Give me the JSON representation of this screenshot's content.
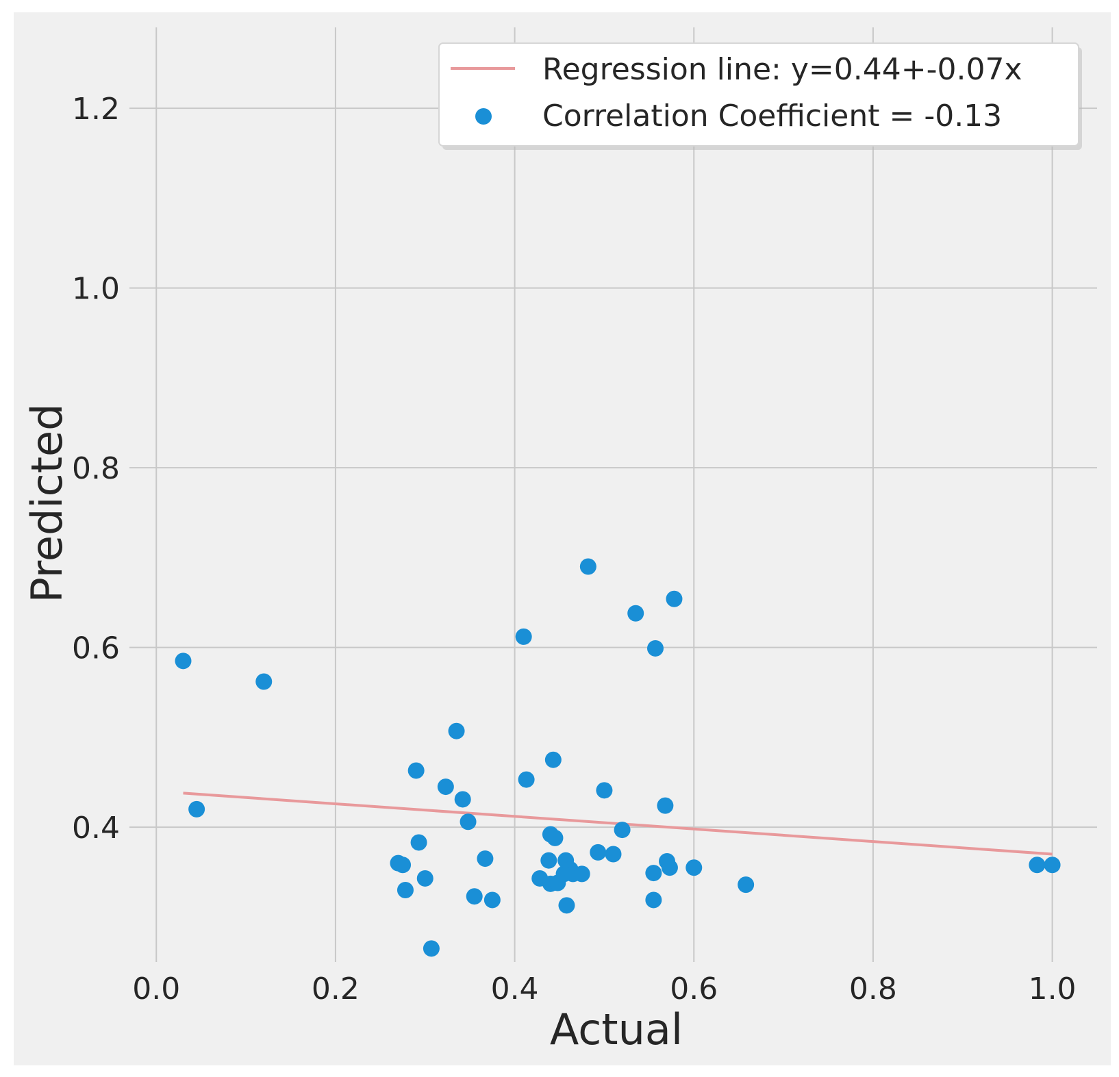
{
  "chart_data": {
    "type": "scatter",
    "title": "",
    "xlabel": "Actual",
    "ylabel": "Predicted",
    "xlim": [
      -0.03,
      1.05
    ],
    "ylim": [
      0.25,
      1.29
    ],
    "xticks": [
      0.0,
      0.2,
      0.4,
      0.6,
      0.8,
      1.0
    ],
    "xtick_labels": [
      "0.0",
      "0.2",
      "0.4",
      "0.6",
      "0.8",
      "1.0"
    ],
    "yticks": [
      0.4,
      0.6,
      0.8,
      1.0,
      1.2
    ],
    "ytick_labels": [
      "0.4",
      "0.6",
      "0.8",
      "1.0",
      "1.2"
    ],
    "grid": true,
    "legend_position": "top-right",
    "regression": {
      "label": "Regression line: y=0.44+-0.07x",
      "intercept": 0.44,
      "slope": -0.07,
      "x_range": [
        0.03,
        1.0
      ],
      "color": "#e8999b"
    },
    "series": [
      {
        "name": "Correlation Coefficient = -0.13",
        "color": "#1a8fd6",
        "points": [
          [
            0.03,
            0.585
          ],
          [
            0.045,
            0.42
          ],
          [
            0.12,
            0.562
          ],
          [
            0.27,
            0.36
          ],
          [
            0.275,
            0.358
          ],
          [
            0.278,
            0.33
          ],
          [
            0.29,
            0.463
          ],
          [
            0.293,
            0.383
          ],
          [
            0.3,
            0.343
          ],
          [
            0.307,
            0.265
          ],
          [
            0.323,
            0.445
          ],
          [
            0.335,
            0.507
          ],
          [
            0.342,
            0.431
          ],
          [
            0.348,
            0.406
          ],
          [
            0.355,
            0.323
          ],
          [
            0.367,
            0.365
          ],
          [
            0.375,
            0.319
          ],
          [
            0.41,
            0.612
          ],
          [
            0.413,
            0.453
          ],
          [
            0.428,
            0.343
          ],
          [
            0.438,
            0.363
          ],
          [
            0.44,
            0.337
          ],
          [
            0.44,
            0.392
          ],
          [
            0.443,
            0.475
          ],
          [
            0.445,
            0.388
          ],
          [
            0.448,
            0.338
          ],
          [
            0.455,
            0.348
          ],
          [
            0.457,
            0.363
          ],
          [
            0.458,
            0.313
          ],
          [
            0.462,
            0.353
          ],
          [
            0.465,
            0.348
          ],
          [
            0.475,
            0.348
          ],
          [
            0.482,
            0.69
          ],
          [
            0.493,
            0.372
          ],
          [
            0.5,
            0.441
          ],
          [
            0.51,
            0.37
          ],
          [
            0.52,
            0.397
          ],
          [
            0.535,
            0.638
          ],
          [
            0.555,
            0.349
          ],
          [
            0.555,
            0.319
          ],
          [
            0.557,
            0.599
          ],
          [
            0.568,
            0.424
          ],
          [
            0.57,
            0.362
          ],
          [
            0.573,
            0.355
          ],
          [
            0.578,
            0.654
          ],
          [
            0.6,
            0.355
          ],
          [
            0.658,
            0.336
          ],
          [
            0.983,
            0.358
          ],
          [
            1.0,
            0.358
          ]
        ]
      }
    ]
  }
}
